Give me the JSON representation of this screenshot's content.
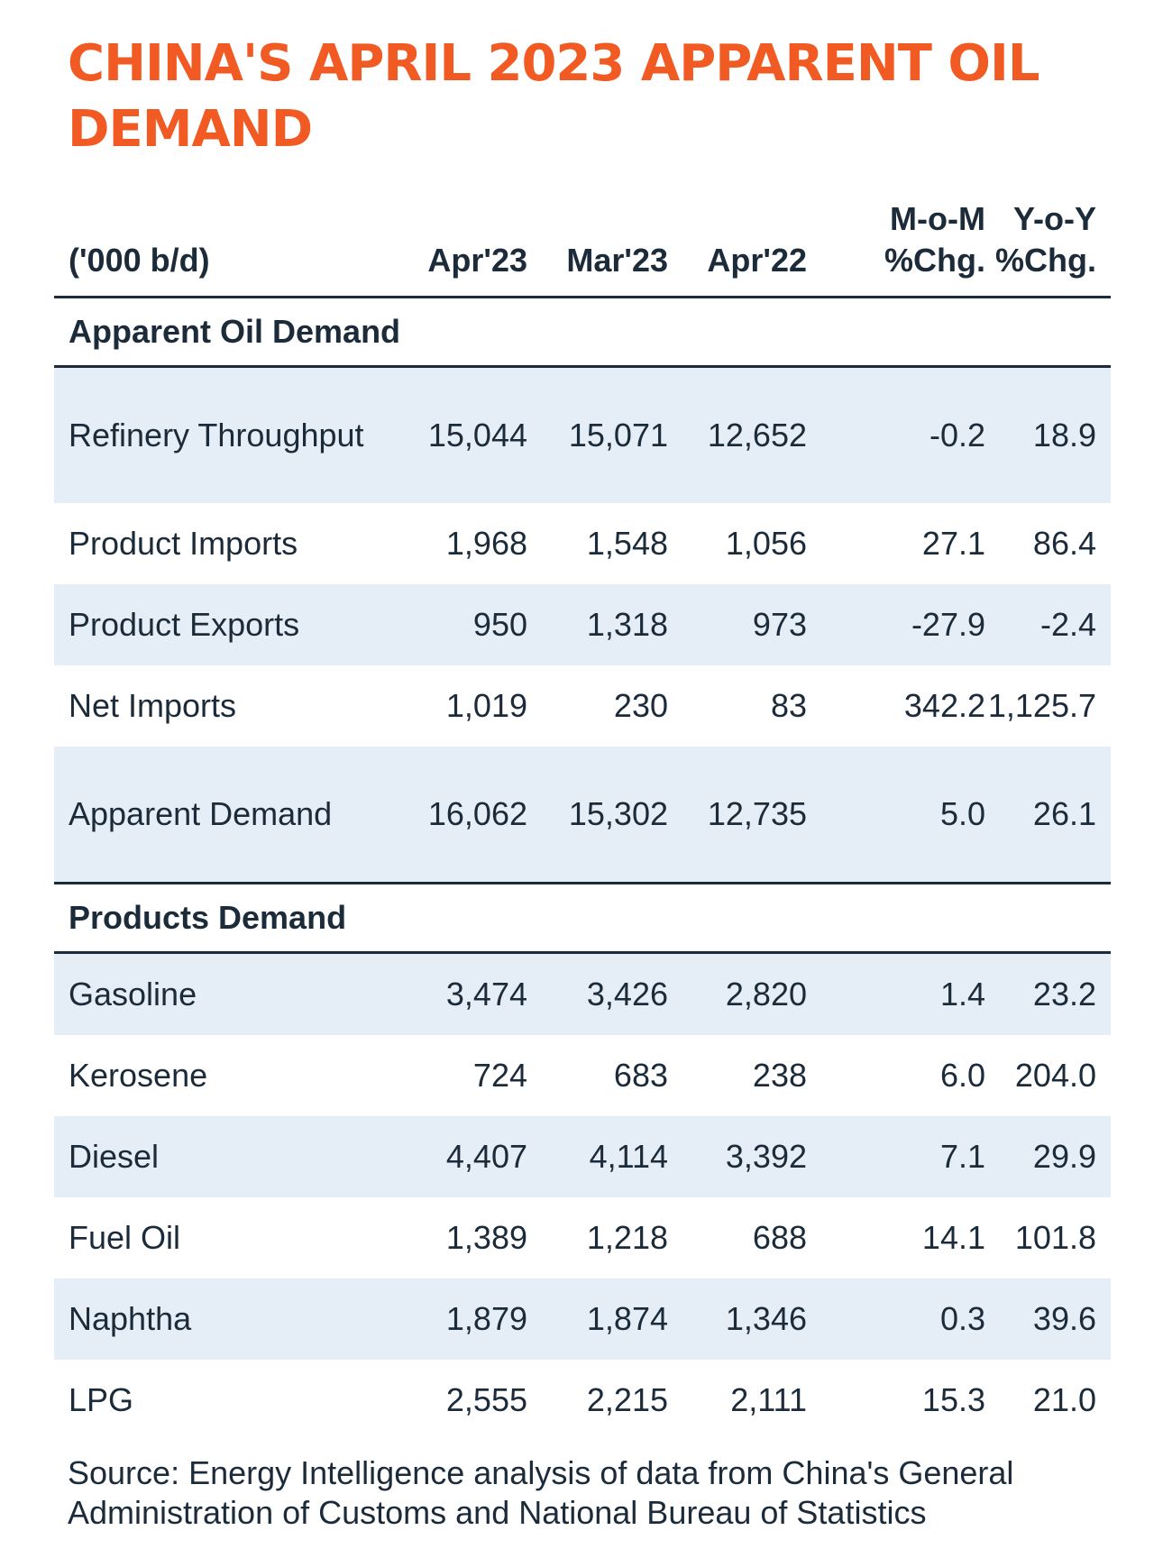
{
  "chart_data": {
    "type": "table",
    "title": "CHINA'S APRIL 2023 APPARENT OIL DEMAND",
    "unit_label": "('000 b/d)",
    "columns": [
      "Apr'23",
      "Mar'23",
      "Apr'22",
      "M-o-M %Chg.",
      "Y-o-Y %Chg."
    ],
    "sections": [
      {
        "name": "Apparent Oil Demand",
        "rows": [
          {
            "label": "Refinery Throughput",
            "values": [
              "15,044",
              "15,071",
              "12,652",
              "-0.2",
              "18.9"
            ]
          },
          {
            "label": "Product Imports",
            "values": [
              "1,968",
              "1,548",
              "1,056",
              "27.1",
              "86.4"
            ]
          },
          {
            "label": "Product Exports",
            "values": [
              "950",
              "1,318",
              "973",
              "-27.9",
              "-2.4"
            ]
          },
          {
            "label": "Net Imports",
            "values": [
              "1,019",
              "230",
              "83",
              "342.2",
              "1,125.7"
            ]
          },
          {
            "label": "Apparent Demand",
            "values": [
              "16,062",
              "15,302",
              "12,735",
              "5.0",
              "26.1"
            ]
          }
        ]
      },
      {
        "name": "Products Demand",
        "rows": [
          {
            "label": "Gasoline",
            "values": [
              "3,474",
              "3,426",
              "2,820",
              "1.4",
              "23.2"
            ]
          },
          {
            "label": "Kerosene",
            "values": [
              "724",
              "683",
              "238",
              "6.0",
              "204.0"
            ]
          },
          {
            "label": "Diesel",
            "values": [
              "4,407",
              "4,114",
              "3,392",
              "7.1",
              "29.9"
            ]
          },
          {
            "label": "Fuel Oil",
            "values": [
              "1,389",
              "1,218",
              "688",
              "14.1",
              "101.8"
            ]
          },
          {
            "label": "Naphtha",
            "values": [
              "1,879",
              "1,874",
              "1,346",
              "0.3",
              "39.6"
            ]
          },
          {
            "label": "LPG",
            "values": [
              "2,555",
              "2,215",
              "2,111",
              "15.3",
              "21.0"
            ]
          }
        ]
      }
    ],
    "source": "Source: Energy Intelligence analysis of data from China's General Administration of Customs and National Bureau of Statistics",
    "colors": {
      "title": "#f15a22",
      "text": "#1c2b3a",
      "row_shade": "#e5edf6"
    }
  }
}
